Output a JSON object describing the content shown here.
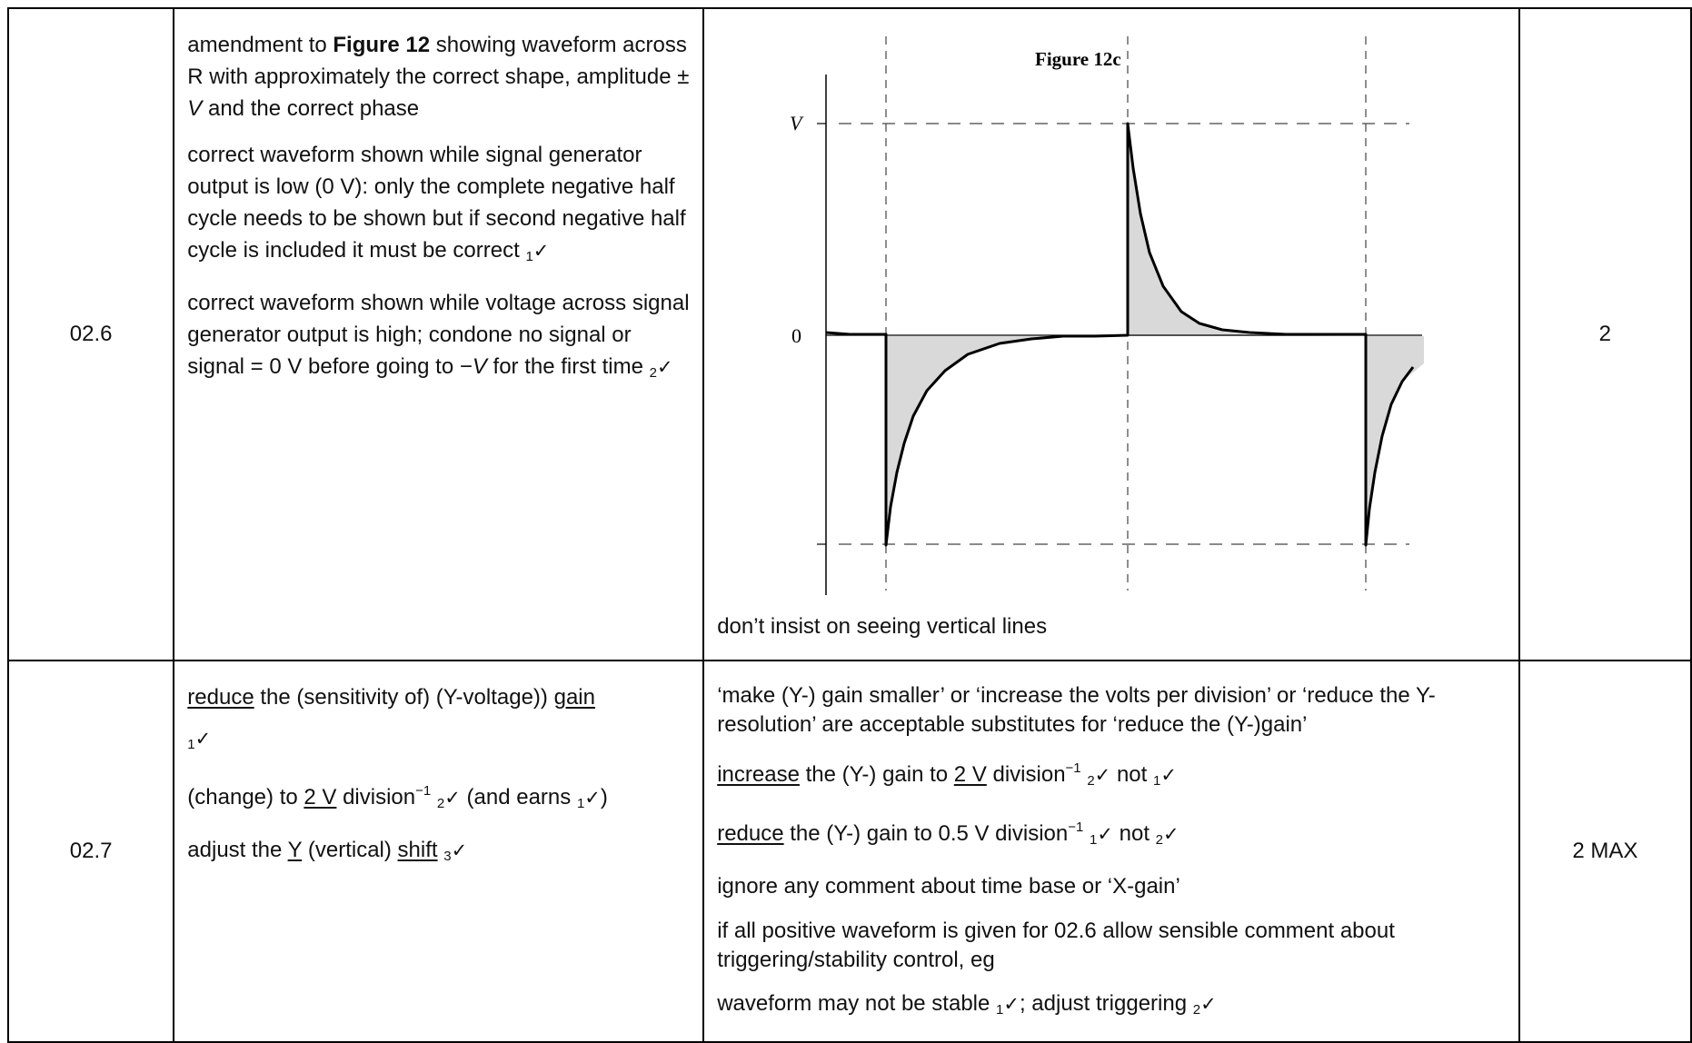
{
  "row_06": {
    "qno": "02.6",
    "answer": {
      "p1_a": "amendment to ",
      "p1_fig": "Figure 12",
      "p1_b": " showing waveform across R with approximately the correct shape, amplitude ± ",
      "p1_v": "V",
      "p1_c": " and the correct phase",
      "p2": "correct waveform shown while signal generator output is low (0 V): only the complete negative half cycle needs to be shown but if second negative half cycle is included it must be correct ",
      "p2_tick": "1",
      "p3_a": "correct waveform shown while voltage across signal generator output is high; condone no signal or signal = 0 V before going to −",
      "p3_v": "V",
      "p3_b": " for the first time ",
      "p3_tick": "2"
    },
    "figure": {
      "title": "Figure 12c",
      "label_v": "V",
      "label_zero": "0"
    },
    "guidance": "don’t insist on seeing vertical lines",
    "mark": "2"
  },
  "row_07": {
    "qno": "02.7",
    "answer": {
      "l1_reduce": "reduce",
      "l1_mid": " the (sensitivity of) (Y-voltage)) ",
      "l1_gain": "gain",
      "l1_tick": "1",
      "l2_a": "(change) to ",
      "l2_u": "2 V",
      "l2_b": " division",
      "l2_exp": "−1",
      "l2_tick": "2",
      "l2_c": " (and earns ",
      "l2_tick2": "1",
      "l2_d": ")",
      "l3_a": "adjust the ",
      "l3_y": "Y",
      "l3_b": " (vertical) ",
      "l3_shift": "shift",
      "l3_tick": "3"
    },
    "guidance": {
      "g1": "‘make (Y-) gain smaller’ or ‘increase the volts per division’ or ‘reduce the Y-resolution’ are acceptable substitutes for ‘reduce the (Y-)gain’",
      "g2_increase": "increase",
      "g2_mid": " the (Y-) gain to ",
      "g2_u": "2 V",
      "g2_div": " division",
      "g2_exp": "−1",
      "g2_tick": "2",
      "g2_not": " not ",
      "g2_tick2": "1",
      "g3_reduce": "reduce",
      "g3_mid": " the (Y-) gain to 0.5 V division",
      "g3_exp": "−1",
      "g3_tick": "1",
      "g3_not": " not ",
      "g3_tick2": "2",
      "g4": "ignore any comment about time base or ‘X-gain’",
      "g5": "if all positive waveform is given for 02.6 allow sensible comment about triggering/stability control, eg",
      "g6_a": "waveform may not be stable ",
      "g6_tick": "1",
      "g6_b": "; adjust triggering ",
      "g6_tick2": "2"
    },
    "mark": "2 MAX"
  },
  "check_glyph": "✓"
}
